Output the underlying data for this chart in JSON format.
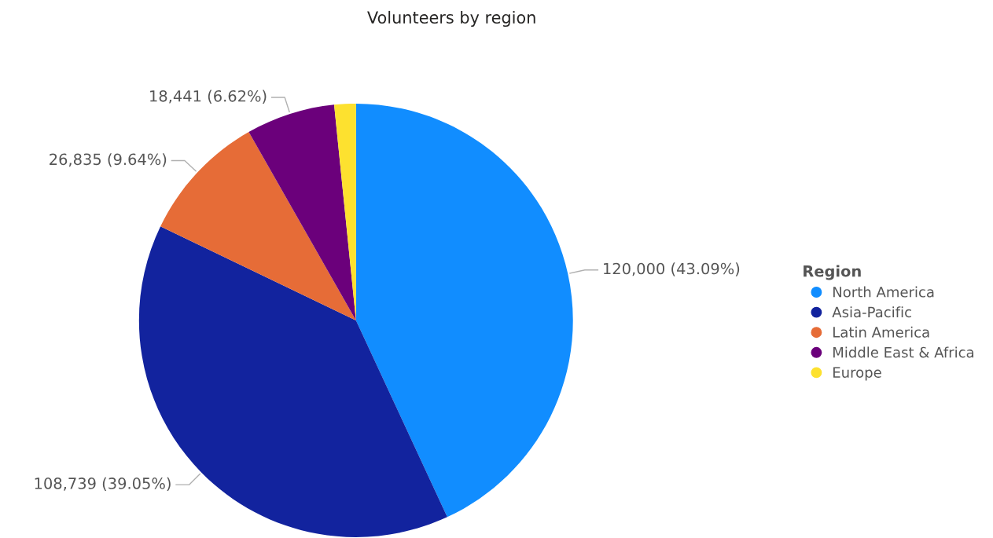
{
  "chart_data": {
    "type": "pie",
    "title": "Volunteers by region",
    "legend_title": "Region",
    "legend": "right",
    "categories": [
      "North America",
      "Asia-Pacific",
      "Latin America",
      "Middle East & Africa",
      "Europe"
    ],
    "values": [
      120000,
      108739,
      26835,
      18441,
      4472
    ],
    "value_labels": [
      "120,000 (43.09%)",
      "108,739 (39.05%)",
      "26,835 (9.64%)",
      "18,441 (6.62%)",
      null
    ],
    "colors": [
      "#118dff",
      "#12239e",
      "#e66c37",
      "#6b007b",
      "#fde12f"
    ]
  }
}
